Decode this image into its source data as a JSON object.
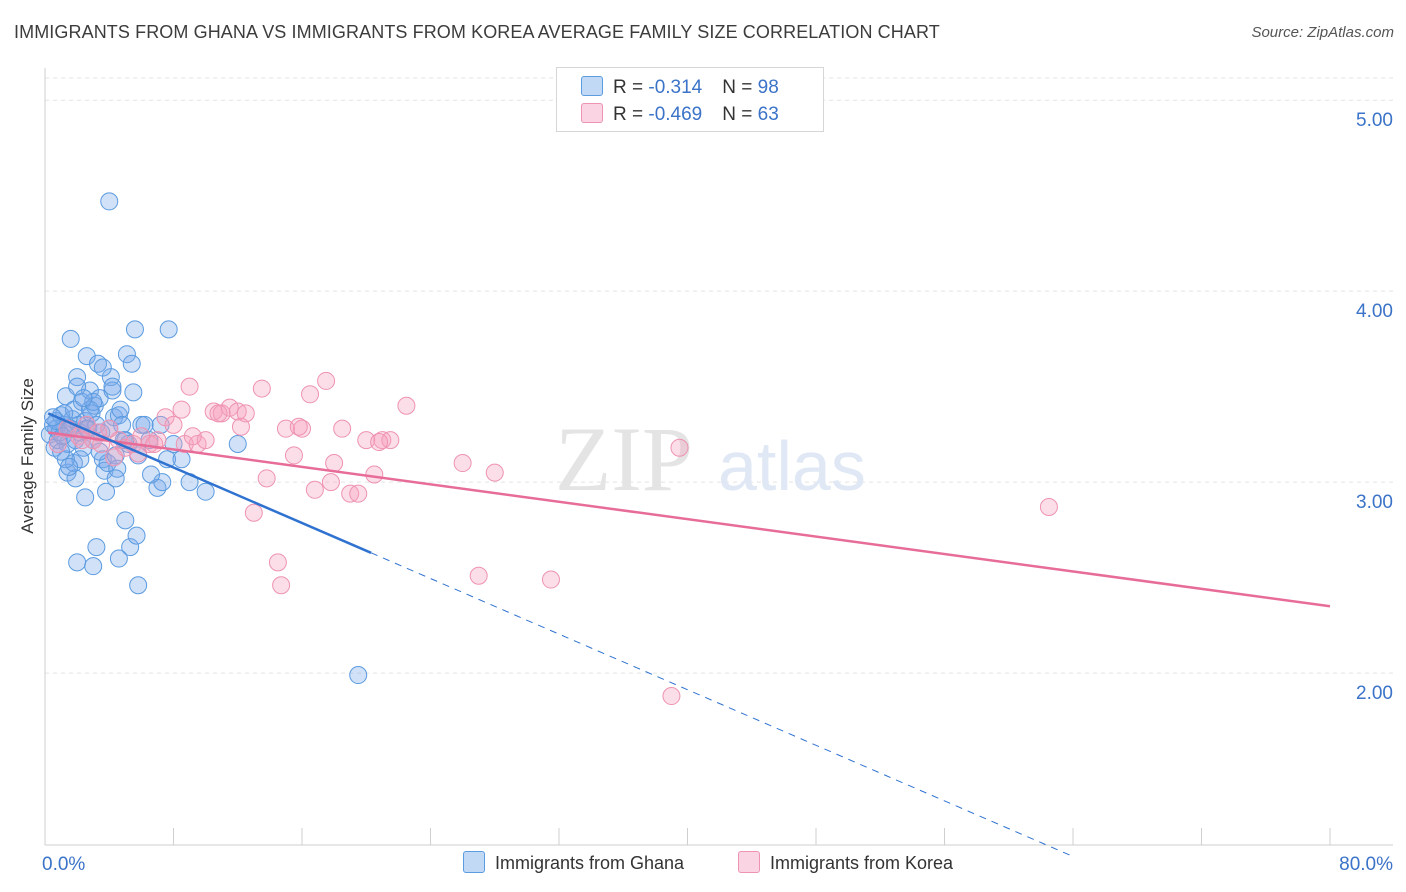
{
  "header": {
    "title": "IMMIGRANTS FROM GHANA VS IMMIGRANTS FROM KOREA AVERAGE FAMILY SIZE CORRELATION CHART",
    "source": "Source: ZipAtlas.com"
  },
  "legend": {
    "row1": {
      "r_label": "R = ",
      "r_value": "-0.314",
      "n_label": "N = ",
      "n_value": "98"
    },
    "row2": {
      "r_label": "R = ",
      "r_value": "-0.469",
      "n_label": "N = ",
      "n_value": "63"
    }
  },
  "watermark": {
    "zip": "ZIP",
    "atlas": "atlas"
  },
  "colors": {
    "ghana_fill": "rgba(120,170,235,0.35)",
    "ghana_stroke": "#5b9be0",
    "ghana_line": "#2f72d0",
    "korea_fill": "rgba(245,160,190,0.35)",
    "korea_stroke": "#ee93b2",
    "korea_line": "#e76c98",
    "tick_text": "#3b73c8"
  },
  "chart_data": {
    "type": "scatter",
    "title": "IMMIGRANTS FROM GHANA VS IMMIGRANTS FROM KOREA AVERAGE FAMILY SIZE CORRELATION CHART",
    "xlabel": "",
    "ylabel": "Average Family Size",
    "xlim": [
      0,
      80
    ],
    "ylim": [
      1.1,
      5.2
    ],
    "x_tick_labels": [
      "0.0%",
      "80.0%"
    ],
    "y_ticks": [
      2.0,
      3.0,
      4.0,
      5.0
    ],
    "y_tick_labels": [
      "2.00",
      "3.00",
      "4.00",
      "5.00"
    ],
    "grid": true,
    "legend_position": "top-center",
    "series": [
      {
        "name": "Immigrants from Ghana",
        "r": -0.314,
        "n": 98,
        "trend": {
          "x_start": 0.2,
          "y_start": 3.36,
          "x_solid_end": 20.3,
          "y_solid_end": 2.63,
          "x_dash_end": 64.0,
          "y_dash_end": 1.04
        },
        "points": [
          [
            0.3,
            3.25
          ],
          [
            0.5,
            3.3
          ],
          [
            0.6,
            3.18
          ],
          [
            0.7,
            3.28
          ],
          [
            0.8,
            3.22
          ],
          [
            1.0,
            3.35
          ],
          [
            1.2,
            3.3
          ],
          [
            1.3,
            3.45
          ],
          [
            1.4,
            3.2
          ],
          [
            1.5,
            3.28
          ],
          [
            1.6,
            3.75
          ],
          [
            1.7,
            3.33
          ],
          [
            1.8,
            3.38
          ],
          [
            1.9,
            3.22
          ],
          [
            2.0,
            3.55
          ],
          [
            2.1,
            3.3
          ],
          [
            2.2,
            3.26
          ],
          [
            2.3,
            3.42
          ],
          [
            2.4,
            3.18
          ],
          [
            2.5,
            3.32
          ],
          [
            2.6,
            3.66
          ],
          [
            2.7,
            3.28
          ],
          [
            2.8,
            3.48
          ],
          [
            2.9,
            3.36
          ],
          [
            3.0,
            3.22
          ],
          [
            3.1,
            3.4
          ],
          [
            3.2,
            3.3
          ],
          [
            3.3,
            3.62
          ],
          [
            3.4,
            3.44
          ],
          [
            3.5,
            3.26
          ],
          [
            3.6,
            3.12
          ],
          [
            3.7,
            3.06
          ],
          [
            3.8,
            2.95
          ],
          [
            3.9,
            3.1
          ],
          [
            4.0,
            3.28
          ],
          [
            4.1,
            3.55
          ],
          [
            4.2,
            3.48
          ],
          [
            4.3,
            3.34
          ],
          [
            4.4,
            3.14
          ],
          [
            4.5,
            3.07
          ],
          [
            4.6,
            3.35
          ],
          [
            4.7,
            3.38
          ],
          [
            4.8,
            3.3
          ],
          [
            4.9,
            3.22
          ],
          [
            5.0,
            2.8
          ],
          [
            5.1,
            3.67
          ],
          [
            5.2,
            3.2
          ],
          [
            5.3,
            2.66
          ],
          [
            5.4,
            3.62
          ],
          [
            5.5,
            3.47
          ],
          [
            5.6,
            3.8
          ],
          [
            5.7,
            2.72
          ],
          [
            5.8,
            2.46
          ],
          [
            6.0,
            3.3
          ],
          [
            6.5,
            3.22
          ],
          [
            7.0,
            2.97
          ],
          [
            7.2,
            3.3
          ],
          [
            7.3,
            3.0
          ],
          [
            7.6,
            3.12
          ],
          [
            7.7,
            3.8
          ],
          [
            8.0,
            3.2
          ],
          [
            8.5,
            3.12
          ],
          [
            9.0,
            3.0
          ],
          [
            10.0,
            2.95
          ],
          [
            12.0,
            3.2
          ],
          [
            4.0,
            4.47
          ],
          [
            19.5,
            1.99
          ],
          [
            2.0,
            2.58
          ],
          [
            2.5,
            2.92
          ],
          [
            3.0,
            2.56
          ],
          [
            1.4,
            3.05
          ],
          [
            1.6,
            3.28
          ],
          [
            0.9,
            3.26
          ],
          [
            1.1,
            3.24
          ],
          [
            0.7,
            3.32
          ],
          [
            1.8,
            3.1
          ],
          [
            2.6,
            3.28
          ],
          [
            3.4,
            3.16
          ],
          [
            3.6,
            3.6
          ],
          [
            4.2,
            3.5
          ],
          [
            4.6,
            2.6
          ],
          [
            5.8,
            3.14
          ],
          [
            6.2,
            3.3
          ],
          [
            2.0,
            3.5
          ],
          [
            2.2,
            3.12
          ],
          [
            2.8,
            3.38
          ],
          [
            1.3,
            3.12
          ],
          [
            1.9,
            3.02
          ],
          [
            3.2,
            2.66
          ],
          [
            4.4,
            3.02
          ],
          [
            6.6,
            3.04
          ],
          [
            3.0,
            3.42
          ],
          [
            5.0,
            3.22
          ],
          [
            1.0,
            3.16
          ],
          [
            1.2,
            3.36
          ],
          [
            1.5,
            3.08
          ],
          [
            2.4,
            3.44
          ],
          [
            0.5,
            3.34
          ]
        ]
      },
      {
        "name": "Immigrants from Korea",
        "r": -0.469,
        "n": 63,
        "trend": {
          "x_start": 0.2,
          "y_start": 3.26,
          "x_end": 80.0,
          "y_end": 2.35
        },
        "points": [
          [
            0.8,
            3.2
          ],
          [
            1.4,
            3.28
          ],
          [
            2.1,
            3.24
          ],
          [
            2.6,
            3.3
          ],
          [
            3.0,
            3.22
          ],
          [
            3.5,
            3.2
          ],
          [
            4.0,
            3.28
          ],
          [
            4.6,
            3.22
          ],
          [
            5.0,
            3.18
          ],
          [
            5.5,
            3.2
          ],
          [
            6.0,
            3.24
          ],
          [
            6.5,
            3.2
          ],
          [
            7.0,
            3.22
          ],
          [
            7.5,
            3.34
          ],
          [
            8.0,
            3.3
          ],
          [
            8.5,
            3.38
          ],
          [
            8.7,
            3.2
          ],
          [
            9.0,
            3.5
          ],
          [
            9.5,
            3.2
          ],
          [
            10.0,
            3.22
          ],
          [
            10.5,
            3.37
          ],
          [
            11.0,
            3.36
          ],
          [
            11.5,
            3.39
          ],
          [
            12.0,
            3.37
          ],
          [
            12.5,
            3.36
          ],
          [
            13.0,
            2.84
          ],
          [
            13.5,
            3.49
          ],
          [
            13.8,
            3.02
          ],
          [
            14.5,
            2.58
          ],
          [
            14.7,
            2.46
          ],
          [
            15.0,
            3.28
          ],
          [
            15.5,
            3.14
          ],
          [
            16.0,
            3.28
          ],
          [
            16.5,
            3.46
          ],
          [
            16.8,
            2.96
          ],
          [
            17.5,
            3.53
          ],
          [
            18.0,
            3.1
          ],
          [
            18.5,
            3.28
          ],
          [
            19.0,
            2.94
          ],
          [
            19.5,
            2.94
          ],
          [
            20.0,
            3.22
          ],
          [
            20.5,
            3.04
          ],
          [
            21.0,
            3.22
          ],
          [
            21.5,
            3.22
          ],
          [
            22.5,
            3.4
          ],
          [
            26.0,
            3.1
          ],
          [
            27.0,
            2.51
          ],
          [
            28.0,
            3.05
          ],
          [
            31.5,
            2.49
          ],
          [
            39.5,
            3.18
          ],
          [
            39.0,
            1.88
          ],
          [
            62.5,
            2.87
          ],
          [
            12.2,
            3.29
          ],
          [
            15.8,
            3.29
          ],
          [
            17.8,
            3.0
          ],
          [
            9.2,
            3.24
          ],
          [
            10.8,
            3.36
          ],
          [
            20.8,
            3.21
          ],
          [
            6.8,
            3.2
          ],
          [
            5.8,
            3.15
          ],
          [
            4.3,
            3.13
          ],
          [
            3.3,
            3.26
          ],
          [
            2.3,
            3.22
          ]
        ]
      }
    ]
  },
  "bottom_legend": {
    "ghana_label": "Immigrants from Ghana",
    "korea_label": "Immigrants from Korea"
  }
}
